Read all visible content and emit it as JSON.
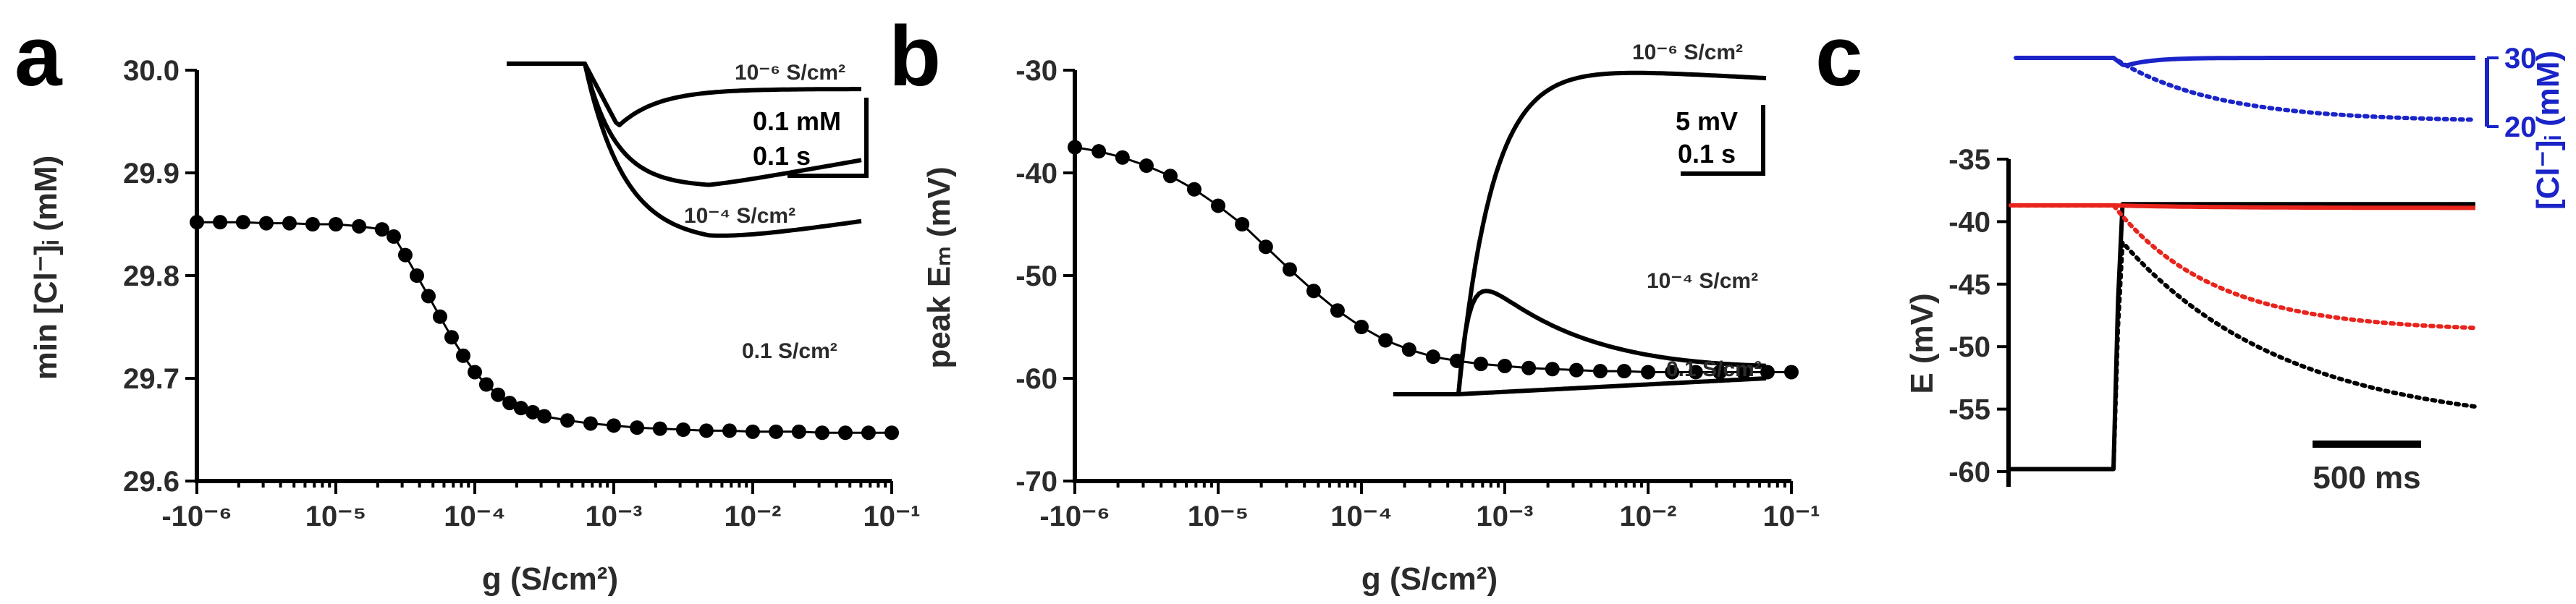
{
  "panels": {
    "a": "a",
    "b": "b",
    "c": "c"
  },
  "chart_data": [
    {
      "type": "line",
      "panel": "a",
      "xlabel": "g (S/cm²)",
      "ylabel": "min [Cl⁻]ᵢ (mM)",
      "x_scale": "log",
      "xlim": [
        1e-06,
        0.1
      ],
      "x_ticks": [
        "-10⁻⁶",
        "10⁻⁵",
        "10⁻⁴",
        "10⁻³",
        "10⁻²",
        "10⁻¹"
      ],
      "ylim": [
        29.6,
        30.0
      ],
      "y_ticks": [
        "29.6",
        "29.7",
        "29.8",
        "29.9",
        "30.0"
      ],
      "series": [
        {
          "x": [
            1e-06,
            1.47e-06,
            2.15e-06,
            3.16e-06,
            4.64e-06,
            6.81e-06,
            1e-05,
            1.47e-05,
            2.15e-05,
            2.61e-05,
            3.16e-05,
            3.83e-05,
            4.64e-05,
            5.62e-05,
            6.81e-05,
            8.25e-05,
            0.0001,
            0.000121,
            0.000147,
            0.000178,
            0.000215,
            0.000261,
            0.000316,
            0.000464,
            0.000681,
            0.001,
            0.00147,
            0.00215,
            0.00316,
            0.00464,
            0.00681,
            0.01,
            0.0147,
            0.0215,
            0.0316,
            0.0464,
            0.0681,
            0.1
          ],
          "values": [
            29.852,
            29.852,
            29.852,
            29.851,
            29.851,
            29.85,
            29.85,
            29.848,
            29.845,
            29.838,
            29.82,
            29.8,
            29.78,
            29.76,
            29.74,
            29.722,
            29.706,
            29.694,
            29.684,
            29.676,
            29.671,
            29.667,
            29.663,
            29.659,
            29.656,
            29.654,
            29.652,
            29.651,
            29.65,
            29.649,
            29.649,
            29.648,
            29.648,
            29.648,
            29.647,
            29.647,
            29.647,
            29.647
          ]
        }
      ],
      "inset": {
        "traces": [
          {
            "label": "10⁻⁶ S/cm²",
            "dip": 0.28,
            "recovery": 0.35
          },
          {
            "label": "10⁻⁴ S/cm²",
            "dip": 0.55,
            "recovery": 0.18
          },
          {
            "label": "0.1 S/cm²",
            "dip": 0.8,
            "recovery": 0.1
          }
        ],
        "scale_y": "0.1 mM",
        "scale_x": "0.1 s"
      }
    },
    {
      "type": "line",
      "panel": "b",
      "xlabel": "g (S/cm²)",
      "ylabel": "peak Eₘ (mV)",
      "x_scale": "log",
      "xlim": [
        1e-06,
        0.1
      ],
      "x_ticks": [
        "-10⁻⁶",
        "10⁻⁵",
        "10⁻⁴",
        "10⁻³",
        "10⁻²",
        "10⁻¹"
      ],
      "ylim": [
        -70,
        -30
      ],
      "y_ticks": [
        "-70",
        "-60",
        "-50",
        "-40",
        "-30"
      ],
      "series": [
        {
          "x": [
            1e-06,
            1.47e-06,
            2.15e-06,
            3.16e-06,
            4.64e-06,
            6.81e-06,
            1e-05,
            1.47e-05,
            2.15e-05,
            3.16e-05,
            4.64e-05,
            6.81e-05,
            0.0001,
            0.000147,
            0.000215,
            0.000316,
            0.000464,
            0.000681,
            0.001,
            0.00147,
            0.00215,
            0.00316,
            0.00464,
            0.00681,
            0.01,
            0.0147,
            0.0215,
            0.0316,
            0.0464,
            0.0681,
            0.1
          ],
          "values": [
            -37.5,
            -37.9,
            -38.5,
            -39.3,
            -40.3,
            -41.6,
            -43.2,
            -45.0,
            -47.2,
            -49.4,
            -51.5,
            -53.4,
            -55.0,
            -56.3,
            -57.2,
            -57.9,
            -58.3,
            -58.6,
            -58.8,
            -59.0,
            -59.1,
            -59.2,
            -59.3,
            -59.3,
            -59.4,
            -59.4,
            -59.4,
            -59.4,
            -59.4,
            -59.4,
            -59.4
          ]
        }
      ],
      "inset": {
        "traces": [
          {
            "label": "10⁻⁶ S/cm²",
            "peak": 1.0,
            "decay": 0.05
          },
          {
            "label": "10⁻⁴ S/cm²",
            "peak": 0.42,
            "decay": 0.7
          },
          {
            "label": "0.1 S/cm²",
            "peak": 0.05,
            "decay": 0.0
          }
        ],
        "scale_y": "5 mV",
        "scale_x": "0.1 s"
      }
    },
    {
      "type": "line",
      "panel": "c",
      "ylabel": "E (mV)",
      "ylim": [
        -60,
        -35
      ],
      "y_ticks": [
        "-35",
        "-40",
        "-45",
        "-50",
        "-55",
        "-60"
      ],
      "ylabel_right": "[Cl⁻]ᵢ (mM)",
      "ylim_right": [
        20,
        30
      ],
      "y_ticks_right": [
        "30",
        "20"
      ],
      "scale_x": "500 ms",
      "series": [
        {
          "name": "",
          "color": "#000000",
          "style": "solid",
          "start": -59.8,
          "end": -38.6
        },
        {
          "name": "",
          "color": "#000000",
          "style": "dotted",
          "start": -59.8,
          "end": -54.8
        },
        {
          "name": "",
          "color": "#e8241c",
          "style": "solid",
          "start": -38.7,
          "end": -38.9
        },
        {
          "name": "",
          "color": "#e8241c",
          "style": "dotted",
          "start": -38.7,
          "end": -48.5
        },
        {
          "name": "",
          "color": "#1a24c8",
          "style": "solid",
          "start": 30.0,
          "end": 30.0
        },
        {
          "name": "",
          "color": "#1a24c8",
          "style": "dotted",
          "start": 30.0,
          "end": 21.0
        }
      ]
    }
  ]
}
